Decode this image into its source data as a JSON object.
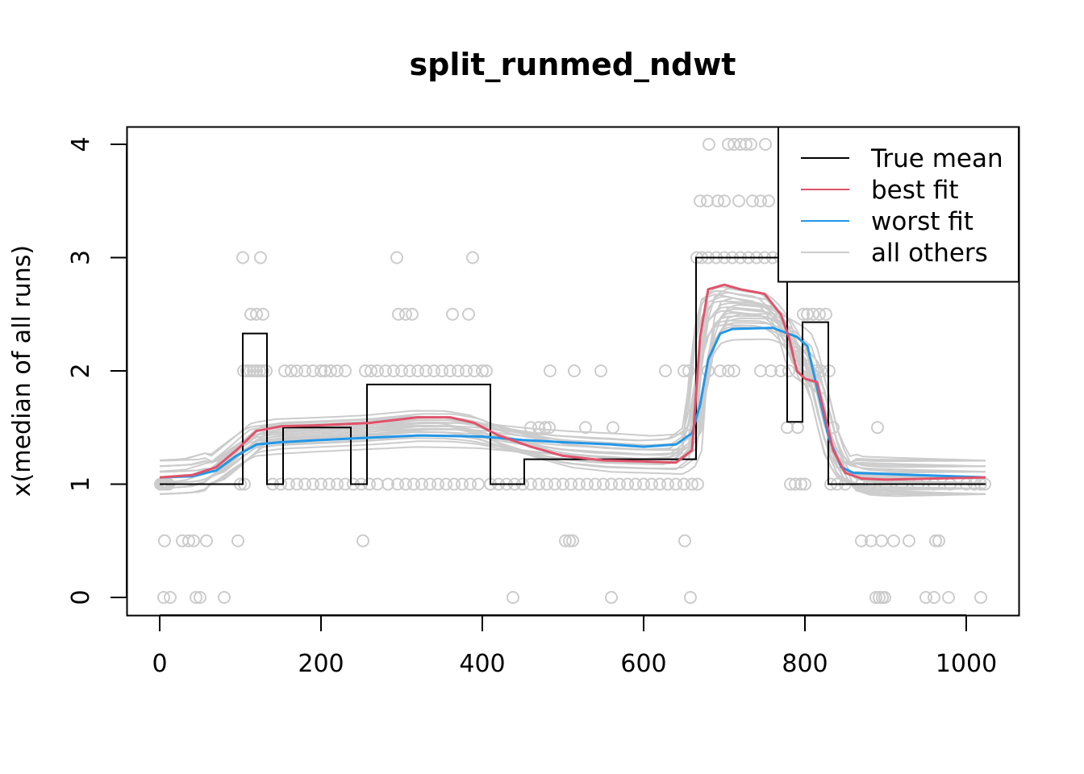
{
  "chart_data": {
    "type": "line",
    "title": "split_runmed_ndwt",
    "xlabel": "",
    "ylabel": "x(median of all runs)",
    "xlim": [
      -20,
      1065
    ],
    "ylim": [
      -0.15,
      4.15
    ],
    "x_ticks": [
      0,
      200,
      400,
      600,
      800,
      1000
    ],
    "y_ticks": [
      0,
      1,
      2,
      3,
      4
    ],
    "grid": false,
    "legend_position": "top-right",
    "legend": [
      {
        "label": "True mean",
        "color": "#000000"
      },
      {
        "label": "best fit",
        "color": "#DF536B"
      },
      {
        "label": "worst fit",
        "color": "#2297E6"
      },
      {
        "label": "all others",
        "color": "#CCCCCC"
      }
    ],
    "true_mean": {
      "name": "True mean",
      "color": "#000000",
      "points": [
        [
          0,
          1
        ],
        [
          103,
          1
        ],
        [
          103,
          2.33
        ],
        [
          133,
          2.33
        ],
        [
          133,
          1
        ],
        [
          153,
          1
        ],
        [
          153,
          1.5
        ],
        [
          237,
          1.5
        ],
        [
          237,
          1
        ],
        [
          257,
          1
        ],
        [
          257,
          1.88
        ],
        [
          410,
          1.88
        ],
        [
          410,
          1
        ],
        [
          452,
          1
        ],
        [
          452,
          1.22
        ],
        [
          665,
          1.22
        ],
        [
          665,
          3
        ],
        [
          778,
          3
        ],
        [
          778,
          1.55
        ],
        [
          797,
          1.55
        ],
        [
          797,
          2.43
        ],
        [
          829,
          2.43
        ],
        [
          829,
          1
        ],
        [
          1024,
          1
        ]
      ]
    },
    "best_fit": {
      "name": "best fit",
      "color": "#DF536B",
      "points": [
        [
          0,
          1.06
        ],
        [
          40,
          1.08
        ],
        [
          70,
          1.15
        ],
        [
          95,
          1.3
        ],
        [
          120,
          1.47
        ],
        [
          150,
          1.51
        ],
        [
          200,
          1.52
        ],
        [
          260,
          1.54
        ],
        [
          320,
          1.59
        ],
        [
          360,
          1.59
        ],
        [
          390,
          1.54
        ],
        [
          420,
          1.43
        ],
        [
          460,
          1.33
        ],
        [
          500,
          1.25
        ],
        [
          550,
          1.21
        ],
        [
          600,
          1.2
        ],
        [
          640,
          1.19
        ],
        [
          660,
          1.3
        ],
        [
          670,
          2.3
        ],
        [
          680,
          2.72
        ],
        [
          700,
          2.76
        ],
        [
          720,
          2.72
        ],
        [
          750,
          2.68
        ],
        [
          770,
          2.5
        ],
        [
          780,
          2.3
        ],
        [
          790,
          2.0
        ],
        [
          800,
          1.93
        ],
        [
          815,
          1.9
        ],
        [
          825,
          1.6
        ],
        [
          835,
          1.3
        ],
        [
          850,
          1.1
        ],
        [
          870,
          1.05
        ],
        [
          900,
          1.04
        ],
        [
          1024,
          1.06
        ]
      ]
    },
    "worst_fit": {
      "name": "worst fit",
      "color": "#2297E6",
      "points": [
        [
          0,
          1.06
        ],
        [
          40,
          1.07
        ],
        [
          70,
          1.12
        ],
        [
          95,
          1.25
        ],
        [
          120,
          1.35
        ],
        [
          150,
          1.37
        ],
        [
          200,
          1.39
        ],
        [
          260,
          1.41
        ],
        [
          320,
          1.43
        ],
        [
          400,
          1.42
        ],
        [
          450,
          1.39
        ],
        [
          500,
          1.37
        ],
        [
          560,
          1.35
        ],
        [
          600,
          1.33
        ],
        [
          640,
          1.35
        ],
        [
          660,
          1.45
        ],
        [
          670,
          1.7
        ],
        [
          680,
          2.1
        ],
        [
          695,
          2.33
        ],
        [
          710,
          2.37
        ],
        [
          760,
          2.38
        ],
        [
          790,
          2.3
        ],
        [
          803,
          2.22
        ],
        [
          815,
          1.85
        ],
        [
          830,
          1.4
        ],
        [
          845,
          1.15
        ],
        [
          860,
          1.1
        ],
        [
          900,
          1.09
        ],
        [
          1024,
          1.06
        ]
      ]
    },
    "others": {
      "name": "all others",
      "color": "#CCCCCC",
      "count": 22
    },
    "observations_points": [
      [
        1,
        1
      ],
      [
        3,
        1
      ],
      [
        5,
        1
      ],
      [
        7,
        1
      ],
      [
        9,
        1
      ],
      [
        11,
        1
      ],
      [
        5,
        0
      ],
      [
        13,
        0
      ],
      [
        6,
        0.5
      ],
      [
        28,
        0.5
      ],
      [
        36,
        0.5
      ],
      [
        42,
        0.5
      ],
      [
        58,
        0.5
      ],
      [
        45,
        0
      ],
      [
        50,
        0
      ],
      [
        80,
        0
      ],
      [
        97,
        0.5
      ],
      [
        103,
        3
      ],
      [
        125,
        3
      ],
      [
        113,
        2.5
      ],
      [
        120,
        2.5
      ],
      [
        128,
        2.5
      ],
      [
        104,
        2
      ],
      [
        108,
        2
      ],
      [
        112,
        2
      ],
      [
        116,
        2
      ],
      [
        120,
        2
      ],
      [
        124,
        2
      ],
      [
        128,
        2
      ],
      [
        132,
        2
      ],
      [
        100,
        1
      ],
      [
        105,
        1
      ],
      [
        140,
        1
      ],
      [
        150,
        1
      ],
      [
        155,
        2
      ],
      [
        163,
        2
      ],
      [
        170,
        2
      ],
      [
        180,
        2
      ],
      [
        190,
        2
      ],
      [
        200,
        2
      ],
      [
        205,
        2
      ],
      [
        212,
        2
      ],
      [
        220,
        2
      ],
      [
        230,
        2
      ],
      [
        160,
        1
      ],
      [
        170,
        1
      ],
      [
        180,
        1
      ],
      [
        190,
        1
      ],
      [
        200,
        1
      ],
      [
        210,
        1
      ],
      [
        220,
        1
      ],
      [
        230,
        1
      ],
      [
        240,
        1
      ],
      [
        250,
        1
      ],
      [
        260,
        1
      ],
      [
        252,
        0.5
      ],
      [
        255,
        2
      ],
      [
        262,
        2
      ],
      [
        270,
        2
      ],
      [
        280,
        2
      ],
      [
        290,
        2
      ],
      [
        300,
        2
      ],
      [
        310,
        2
      ],
      [
        320,
        2
      ],
      [
        330,
        2
      ],
      [
        340,
        2
      ],
      [
        350,
        2
      ],
      [
        360,
        2
      ],
      [
        370,
        2
      ],
      [
        380,
        2
      ],
      [
        390,
        2
      ],
      [
        400,
        2
      ],
      [
        405,
        2
      ],
      [
        294,
        3
      ],
      [
        388,
        3
      ],
      [
        296,
        2.5
      ],
      [
        305,
        2.5
      ],
      [
        313,
        2.5
      ],
      [
        363,
        2.5
      ],
      [
        383,
        2.5
      ],
      [
        270,
        1
      ],
      [
        283,
        1
      ],
      [
        295,
        1
      ],
      [
        305,
        1
      ],
      [
        315,
        1
      ],
      [
        325,
        1
      ],
      [
        335,
        1
      ],
      [
        345,
        1
      ],
      [
        355,
        1
      ],
      [
        365,
        1
      ],
      [
        375,
        1
      ],
      [
        385,
        1
      ],
      [
        395,
        1
      ],
      [
        410,
        1
      ],
      [
        420,
        1
      ],
      [
        430,
        1
      ],
      [
        440,
        1
      ],
      [
        450,
        1
      ],
      [
        460,
        1
      ],
      [
        470,
        1
      ],
      [
        480,
        1
      ],
      [
        490,
        1
      ],
      [
        500,
        1
      ],
      [
        510,
        1
      ],
      [
        520,
        1
      ],
      [
        530,
        1
      ],
      [
        540,
        1
      ],
      [
        550,
        1
      ],
      [
        560,
        1
      ],
      [
        570,
        1
      ],
      [
        580,
        1
      ],
      [
        590,
        1
      ],
      [
        600,
        1
      ],
      [
        610,
        1
      ],
      [
        620,
        1
      ],
      [
        630,
        1
      ],
      [
        640,
        1
      ],
      [
        650,
        1
      ],
      [
        660,
        1
      ],
      [
        667,
        1
      ],
      [
        438,
        0
      ],
      [
        484,
        2
      ],
      [
        514,
        2
      ],
      [
        547,
        2
      ],
      [
        460,
        1.5
      ],
      [
        470,
        1.5
      ],
      [
        478,
        1.5
      ],
      [
        483,
        1.5
      ],
      [
        528,
        1.5
      ],
      [
        562,
        1.5
      ],
      [
        503,
        0.5
      ],
      [
        508,
        0.5
      ],
      [
        512,
        0.5
      ],
      [
        560,
        0
      ],
      [
        651,
        0.5
      ],
      [
        658,
        0
      ],
      [
        627,
        2
      ],
      [
        650,
        2
      ],
      [
        656,
        2
      ],
      [
        666,
        3
      ],
      [
        672,
        3
      ],
      [
        680,
        3
      ],
      [
        690,
        3
      ],
      [
        700,
        3
      ],
      [
        710,
        3
      ],
      [
        720,
        3
      ],
      [
        730,
        3
      ],
      [
        740,
        3
      ],
      [
        750,
        3
      ],
      [
        760,
        3
      ],
      [
        770,
        3
      ],
      [
        681,
        4
      ],
      [
        705,
        4
      ],
      [
        712,
        4
      ],
      [
        720,
        4
      ],
      [
        727,
        4
      ],
      [
        733,
        4
      ],
      [
        751,
        4
      ],
      [
        670,
        3.5
      ],
      [
        679,
        3.5
      ],
      [
        692,
        3.5
      ],
      [
        700,
        3.5
      ],
      [
        718,
        3.5
      ],
      [
        735,
        3.5
      ],
      [
        745,
        3.5
      ],
      [
        755,
        3.5
      ],
      [
        680,
        2
      ],
      [
        695,
        2
      ],
      [
        705,
        2
      ],
      [
        712,
        2
      ],
      [
        745,
        2
      ],
      [
        758,
        2
      ],
      [
        770,
        2
      ],
      [
        780,
        2
      ],
      [
        782,
        1
      ],
      [
        788,
        1
      ],
      [
        795,
        1
      ],
      [
        800,
        1
      ],
      [
        778,
        1.5
      ],
      [
        791,
        1.5
      ],
      [
        798,
        2.5
      ],
      [
        803,
        2.5
      ],
      [
        810,
        2.5
      ],
      [
        818,
        2.5
      ],
      [
        826,
        2.5
      ],
      [
        813,
        2
      ],
      [
        820,
        2
      ],
      [
        830,
        2
      ],
      [
        832,
        1
      ],
      [
        840,
        1
      ],
      [
        850,
        1
      ],
      [
        870,
        1
      ],
      [
        880,
        1
      ],
      [
        900,
        1
      ],
      [
        920,
        1
      ],
      [
        940,
        1
      ],
      [
        960,
        1
      ],
      [
        980,
        1
      ],
      [
        1000,
        1
      ],
      [
        1010,
        1
      ],
      [
        1018,
        1
      ],
      [
        1023,
        1
      ],
      [
        835,
        1.5
      ],
      [
        890,
        1.5
      ],
      [
        870,
        0.5
      ],
      [
        882,
        0.5
      ],
      [
        895,
        0.5
      ],
      [
        910,
        0.5
      ],
      [
        929,
        0.5
      ],
      [
        962,
        0.5
      ],
      [
        966,
        0.5
      ],
      [
        888,
        0
      ],
      [
        892,
        0
      ],
      [
        896,
        0
      ],
      [
        899,
        0
      ],
      [
        950,
        0
      ],
      [
        960,
        0
      ],
      [
        978,
        0
      ],
      [
        1018,
        0
      ]
    ]
  }
}
